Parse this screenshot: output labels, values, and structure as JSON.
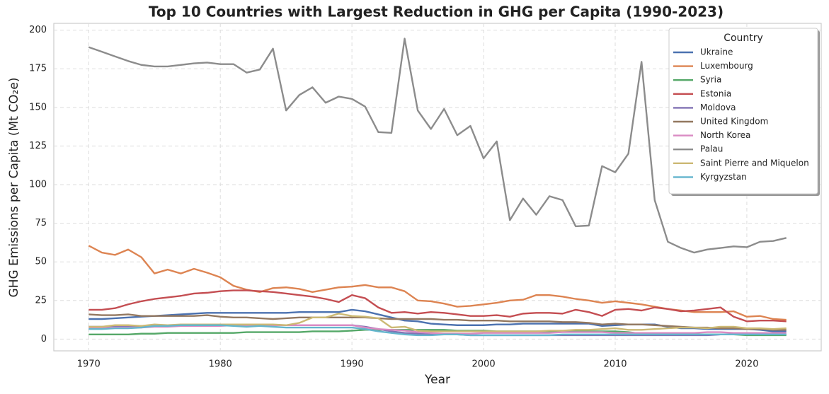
{
  "chart_data": {
    "type": "line",
    "title": "Top 10 Countries with Largest Reduction in GHG per Capita (1990-2023)",
    "x_label": "Year",
    "y_label": "GHG Emissions per Capita (Mt CO₂e)",
    "legend_title": "Country",
    "legend_position": "upper right",
    "grid": true,
    "xlim": [
      1967.35,
      2025.65
    ],
    "xticks": [
      1970,
      1980,
      1990,
      2000,
      2010,
      2020
    ],
    "ylim": [
      -7.6,
      204.4
    ],
    "yticks": [
      0,
      25,
      50,
      75,
      100,
      125,
      150,
      175,
      200
    ],
    "x": [
      1970,
      1971,
      1972,
      1973,
      1974,
      1975,
      1976,
      1977,
      1978,
      1979,
      1980,
      1981,
      1982,
      1983,
      1984,
      1985,
      1986,
      1987,
      1988,
      1989,
      1990,
      1991,
      1992,
      1993,
      1994,
      1995,
      1996,
      1997,
      1998,
      1999,
      2000,
      2001,
      2002,
      2003,
      2004,
      2005,
      2006,
      2007,
      2008,
      2009,
      2010,
      2011,
      2012,
      2013,
      2014,
      2015,
      2016,
      2017,
      2018,
      2019,
      2020,
      2021,
      2022,
      2023
    ],
    "series": [
      {
        "name": "Ukraine",
        "color": "#4c72b0",
        "values": [
          13,
          13,
          13.5,
          14,
          14.5,
          15,
          15.5,
          16,
          16.5,
          17,
          17,
          17,
          17,
          17,
          17,
          17,
          17.5,
          17.5,
          17.5,
          17.5,
          19,
          18,
          16,
          14,
          12,
          11.5,
          10,
          9.5,
          9,
          9,
          9,
          9.5,
          9.5,
          10,
          10,
          10,
          10,
          10,
          10,
          8.5,
          9,
          9.5,
          9.5,
          9.5,
          8,
          7,
          7,
          6.5,
          6.5,
          6.5,
          6.5,
          6,
          5,
          5
        ]
      },
      {
        "name": "Luxembourg",
        "color": "#dd8452",
        "values": [
          60.5,
          56,
          54.5,
          58,
          53,
          42.5,
          45,
          42.5,
          45.5,
          43,
          40,
          34.5,
          32,
          30.5,
          33,
          33.5,
          32.5,
          30.5,
          32,
          33.5,
          34,
          35,
          33.5,
          33.5,
          31,
          25,
          24.5,
          23,
          21,
          21.5,
          22.5,
          23.5,
          25,
          25.5,
          28.5,
          28.5,
          27.5,
          26,
          25,
          23.5,
          24.5,
          23.5,
          22.5,
          21,
          19.5,
          18.5,
          17.5,
          17.5,
          17.5,
          18,
          14.5,
          15,
          13,
          12.5
        ]
      },
      {
        "name": "Syria",
        "color": "#55a868",
        "values": [
          3,
          3,
          3,
          3,
          3.5,
          3.5,
          4,
          4,
          4,
          4,
          4,
          4,
          4.5,
          4.5,
          4.5,
          4.5,
          4.5,
          5,
          5,
          5,
          5.5,
          6,
          6,
          6,
          6,
          6,
          6,
          6,
          5.5,
          5.5,
          5.5,
          5,
          5,
          5,
          5,
          5,
          5,
          5,
          5,
          5,
          5,
          4.5,
          3.5,
          3,
          3,
          3,
          3,
          3,
          3,
          3,
          2.5,
          2.5,
          2.5,
          2.5
        ]
      },
      {
        "name": "Estonia",
        "color": "#c44e52",
        "values": [
          19,
          19,
          20,
          22.5,
          24.5,
          26,
          27,
          28,
          29.5,
          30,
          31,
          31.5,
          31.5,
          31,
          30.5,
          29.5,
          28.5,
          27.5,
          26,
          24,
          28.5,
          26.5,
          20.5,
          17,
          17.5,
          16.5,
          17.5,
          17,
          16,
          15,
          15,
          15.5,
          14.5,
          16.5,
          17,
          17,
          16.5,
          19,
          17.5,
          15,
          19,
          19.5,
          18.5,
          20.5,
          19.5,
          18,
          18.5,
          19.5,
          20.5,
          14.5,
          11.5,
          12,
          12,
          11.5
        ]
      },
      {
        "name": "Moldova",
        "color": "#8172b3",
        "values": [
          8,
          8,
          8.5,
          8.5,
          8.5,
          9,
          9,
          9,
          9,
          9,
          9,
          9,
          9,
          9,
          9,
          9,
          9,
          9,
          9,
          9,
          9,
          8,
          6.5,
          5,
          4,
          3.5,
          3,
          3,
          3,
          2.5,
          2.5,
          2.5,
          2.5,
          2.5,
          2.5,
          2.5,
          2.5,
          2.5,
          2.5,
          2.5,
          2.5,
          2.5,
          2.5,
          2.5,
          2.5,
          2.5,
          2.5,
          2.5,
          3,
          3,
          3,
          3,
          3,
          3
        ]
      },
      {
        "name": "United Kingdom",
        "color": "#937860",
        "values": [
          16,
          15.5,
          15.5,
          16,
          15,
          15,
          15,
          15,
          15,
          15.5,
          14.5,
          14,
          14,
          13.5,
          13,
          13.5,
          14,
          14,
          14,
          14,
          14,
          14,
          13.5,
          13,
          13,
          13,
          13,
          12.5,
          12.5,
          12,
          12,
          12,
          11.5,
          11.5,
          11.5,
          11.5,
          11,
          11,
          10.5,
          9.5,
          10,
          9.5,
          9.5,
          9,
          8.5,
          8,
          7.5,
          7.5,
          7,
          7,
          6.5,
          6.5,
          6,
          6
        ]
      },
      {
        "name": "North Korea",
        "color": "#da8bc3",
        "values": [
          7,
          7,
          7.5,
          7.5,
          7.5,
          8,
          8,
          8.5,
          8.5,
          8.5,
          8.5,
          9,
          9,
          9,
          9,
          9,
          9,
          9,
          9,
          9,
          9,
          7.5,
          6.5,
          6,
          5.5,
          4.5,
          4,
          3.5,
          3.5,
          3.5,
          4,
          4,
          4,
          4,
          4,
          4,
          4.5,
          4.5,
          4.5,
          4.5,
          4,
          4,
          4,
          4,
          4,
          4,
          4,
          4.5,
          4.5,
          4,
          4,
          4,
          4,
          4
        ]
      },
      {
        "name": "Palau",
        "color": "#8c8c8c",
        "values": [
          189,
          186,
          183,
          180,
          177.5,
          176.5,
          176.5,
          177.5,
          178.5,
          179,
          178,
          178,
          172.5,
          174.5,
          188,
          148,
          158,
          163,
          153,
          157,
          155.5,
          150.5,
          134,
          133.5,
          194.5,
          148,
          136,
          149,
          132,
          138,
          117,
          128,
          77,
          91,
          80.5,
          92.5,
          90,
          73,
          73.5,
          112,
          108,
          120,
          179.5,
          90,
          63,
          59,
          56,
          58,
          59,
          60,
          59.5,
          63,
          63.5,
          65.5
        ]
      },
      {
        "name": "Saint Pierre and Miquelon",
        "color": "#ccb974",
        "values": [
          8,
          8,
          9,
          9,
          8.5,
          9.5,
          9,
          9.5,
          9.5,
          9.5,
          9.5,
          9.5,
          9.5,
          9.5,
          9.5,
          9,
          10.5,
          14,
          14,
          16.5,
          15,
          14.5,
          13.5,
          7.5,
          8,
          5.5,
          5,
          5,
          5,
          5,
          5,
          5,
          5,
          5,
          5,
          5.5,
          5.5,
          6,
          6,
          6.5,
          7,
          6,
          6,
          6.5,
          7,
          7.5,
          7.5,
          7,
          8,
          8,
          7,
          7,
          6.5,
          7
        ]
      },
      {
        "name": "Kyrgyzstan",
        "color": "#64b5cd",
        "values": [
          6.5,
          6.5,
          7,
          7,
          7.5,
          8.5,
          8.5,
          9,
          9,
          9,
          9,
          8.5,
          8,
          8.5,
          8,
          7.5,
          7.5,
          7.5,
          7.5,
          7.5,
          7.5,
          6.5,
          5,
          4,
          3,
          2.5,
          2.5,
          3,
          3,
          2.5,
          2.5,
          2.5,
          2.5,
          2.5,
          2.5,
          2.5,
          3,
          3,
          3,
          3,
          3,
          3,
          3,
          3,
          3,
          3,
          3,
          3,
          3,
          3,
          3,
          3,
          3,
          3
        ]
      }
    ]
  }
}
